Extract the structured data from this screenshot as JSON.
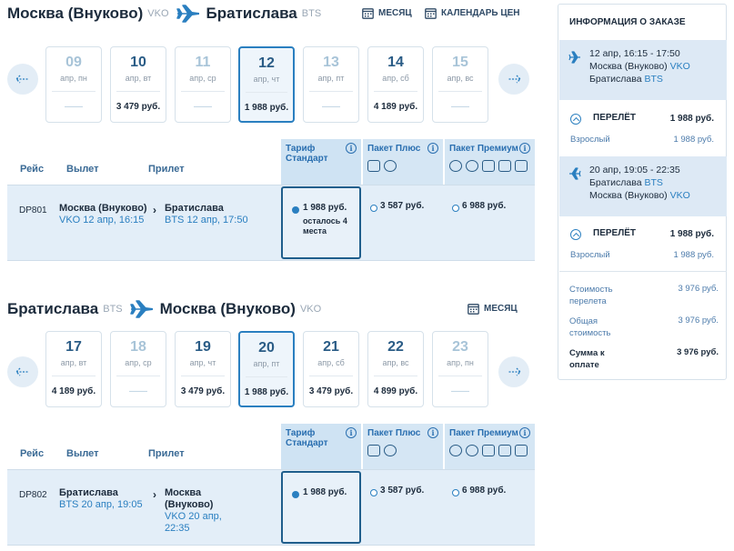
{
  "outbound": {
    "from_city": "Москва (Внуково)",
    "from_code": "VKO",
    "to_city": "Братислава",
    "to_code": "BTS",
    "month_link": "МЕСЯЦ",
    "calendar_link": "КАЛЕНДАРЬ ЦЕН",
    "days": [
      {
        "num": "09",
        "dow": "апр, пн",
        "price": "——"
      },
      {
        "num": "10",
        "dow": "апр, вт",
        "price": "3 479 руб."
      },
      {
        "num": "11",
        "dow": "апр, ср",
        "price": "——"
      },
      {
        "num": "12",
        "dow": "апр, чт",
        "price": "1 988 руб."
      },
      {
        "num": "13",
        "dow": "апр, пт",
        "price": "——"
      },
      {
        "num": "14",
        "dow": "апр, сб",
        "price": "4 189 руб."
      },
      {
        "num": "15",
        "dow": "апр, вс",
        "price": "——"
      }
    ],
    "headers": {
      "flight": "Рейс",
      "depart": "Вылет",
      "arrive": "Прилет",
      "standard": "Тариф Стандарт",
      "plus": "Пакет Плюс",
      "premium": "Пакет Премиум"
    },
    "flight": {
      "number": "DP801",
      "from_city": "Москва (Внуково)",
      "from_time": "VKO 12 апр, 16:15",
      "to_city": "Братислава",
      "to_time": "BTS 12 апр, 17:50",
      "std_price": "1 988 руб.",
      "seats_left": "осталось 4 места",
      "plus_price": "3 587 руб.",
      "premium_price": "6 988 руб."
    }
  },
  "inbound": {
    "from_city": "Братислава",
    "from_code": "BTS",
    "to_city": "Москва (Внуково)",
    "to_code": "VKO",
    "month_link": "МЕСЯЦ",
    "days": [
      {
        "num": "17",
        "dow": "апр, вт",
        "price": "4 189 руб."
      },
      {
        "num": "18",
        "dow": "апр, ср",
        "price": "——"
      },
      {
        "num": "19",
        "dow": "апр, чт",
        "price": "3 479 руб."
      },
      {
        "num": "20",
        "dow": "апр, пт",
        "price": "1 988 руб."
      },
      {
        "num": "21",
        "dow": "апр, сб",
        "price": "3 479 руб."
      },
      {
        "num": "22",
        "dow": "апр, вс",
        "price": "4 899 руб."
      },
      {
        "num": "23",
        "dow": "апр, пн",
        "price": "——"
      }
    ],
    "headers": {
      "flight": "Рейс",
      "depart": "Вылет",
      "arrive": "Прилет",
      "standard": "Тариф Стандарт",
      "plus": "Пакет Плюс",
      "premium": "Пакет Премиум"
    },
    "flight": {
      "number": "DP802",
      "from_city": "Братислава",
      "from_time": "BTS 20 апр, 19:05",
      "to_city": "Москва (Внуково)",
      "to_time": "VKO 20 апр, 22:35",
      "std_price": "1 988 руб.",
      "plus_price": "3 587 руб.",
      "premium_price": "6 988 руб."
    }
  },
  "order": {
    "title": "ИНФОРМАЦИЯ О ЗАКАЗЕ",
    "seg1": {
      "time": "12 апр, 16:15 - 17:50",
      "from": "Москва (Внуково)",
      "from_code": "VKO",
      "to": "Братислава",
      "to_code": "BTS"
    },
    "seg1_flight": {
      "label": "ПЕРЕЛЁТ",
      "amount": "1 988 руб.",
      "pax": "Взрослый",
      "pax_amount": "1 988 руб."
    },
    "seg2": {
      "time": "20 апр, 19:05 - 22:35",
      "from": "Братислава",
      "from_code": "BTS",
      "to": "Москва (Внуково)",
      "to_code": "VKO"
    },
    "seg2_flight": {
      "label": "ПЕРЕЛЁТ",
      "amount": "1 988 руб.",
      "pax": "Взрослый",
      "pax_amount": "1 988 руб."
    },
    "flight_cost_label": "Стоимость перелета",
    "flight_cost": "3 976 руб.",
    "total_cost_label": "Общая стоимость",
    "total_cost": "3 976 руб.",
    "pay_label": "Сумма к оплате",
    "pay": "3 976 руб."
  },
  "colors": {
    "accent": "#2a7fc0",
    "dark": "#1c2b3c",
    "selected_bg": "#e3eef8"
  }
}
